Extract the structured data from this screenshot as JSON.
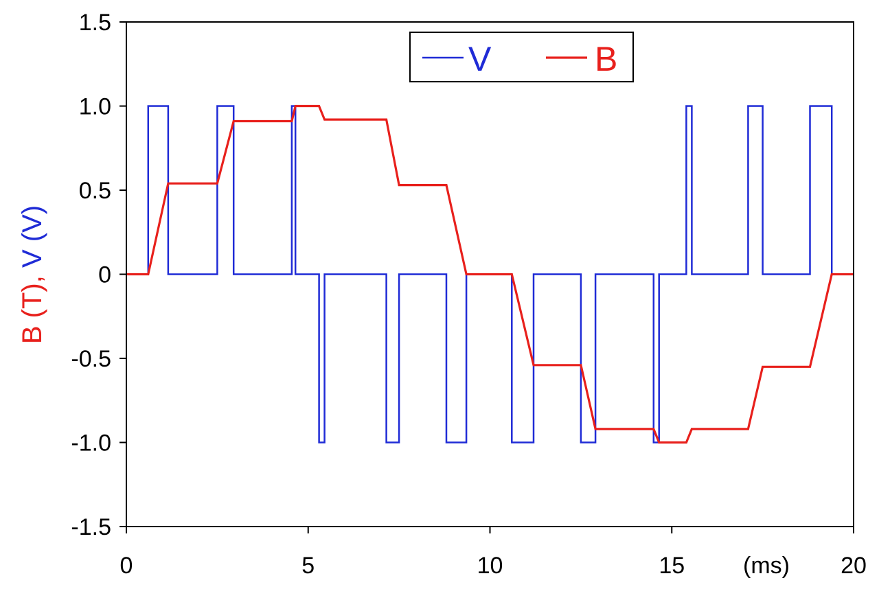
{
  "chart_data": {
    "type": "line",
    "xlim": [
      0,
      20
    ],
    "ylim": [
      -1.5,
      1.5
    ],
    "x_ticks": [
      0,
      5,
      10,
      15,
      20
    ],
    "x_tick_labels": [
      "0",
      "5",
      "10",
      "15",
      "20"
    ],
    "y_ticks": [
      1.5,
      1.0,
      0.5,
      0,
      -0.5,
      -1.0,
      -1.5
    ],
    "y_tick_labels": [
      "1.5",
      "1.0",
      "0.5",
      "0",
      "-0.5",
      "-1.0",
      "-1.5"
    ],
    "x_unit_label": "(ms)",
    "ylabel_parts": [
      {
        "text": "B (T)",
        "color": "#e8201c"
      },
      {
        "text": ", ",
        "color": "#e8201c"
      },
      {
        "text": "V (V)",
        "color": "#1f2bd6"
      }
    ],
    "grid": false,
    "legend_position": "top-center",
    "series": [
      {
        "name": "V",
        "color": "#1f2bd6",
        "x": [
          0,
          0.6,
          0.6,
          1.15,
          1.15,
          2.5,
          2.5,
          2.95,
          2.95,
          4.55,
          4.55,
          4.65,
          4.65,
          5.3,
          5.3,
          5.45,
          5.45,
          7.15,
          7.15,
          7.5,
          7.5,
          8.8,
          8.8,
          9.35,
          9.35,
          10.6,
          10.6,
          11.2,
          11.2,
          12.5,
          12.5,
          12.9,
          12.9,
          14.5,
          14.5,
          14.65,
          14.65,
          15.4,
          15.4,
          15.55,
          15.55,
          17.1,
          17.1,
          17.5,
          17.5,
          18.8,
          18.8,
          19.4,
          19.4,
          20
        ],
        "values": [
          0,
          0,
          1,
          1,
          0,
          0,
          1,
          1,
          0,
          0,
          1,
          1,
          0,
          0,
          -1,
          -1,
          0,
          0,
          -1,
          -1,
          0,
          0,
          -1,
          -1,
          0,
          0,
          -1,
          -1,
          0,
          0,
          -1,
          -1,
          0,
          0,
          -1,
          -1,
          0,
          0,
          1,
          1,
          0,
          0,
          1,
          1,
          0,
          0,
          1,
          1,
          0,
          0
        ]
      },
      {
        "name": "B",
        "color": "#e8201c",
        "x": [
          0,
          0.6,
          1.15,
          2.5,
          2.95,
          4.55,
          4.65,
          5.3,
          5.45,
          7.15,
          7.5,
          8.8,
          9.35,
          10.6,
          11.2,
          12.5,
          12.9,
          14.5,
          14.65,
          15.4,
          15.55,
          17.1,
          17.5,
          18.8,
          19.4,
          20
        ],
        "values": [
          0,
          0,
          0.54,
          0.54,
          0.91,
          0.91,
          1.0,
          1.0,
          0.92,
          0.92,
          0.53,
          0.53,
          0,
          0,
          -0.54,
          -0.54,
          -0.92,
          -0.92,
          -1.0,
          -1.0,
          -0.92,
          -0.92,
          -0.55,
          -0.55,
          0,
          0
        ]
      }
    ]
  }
}
